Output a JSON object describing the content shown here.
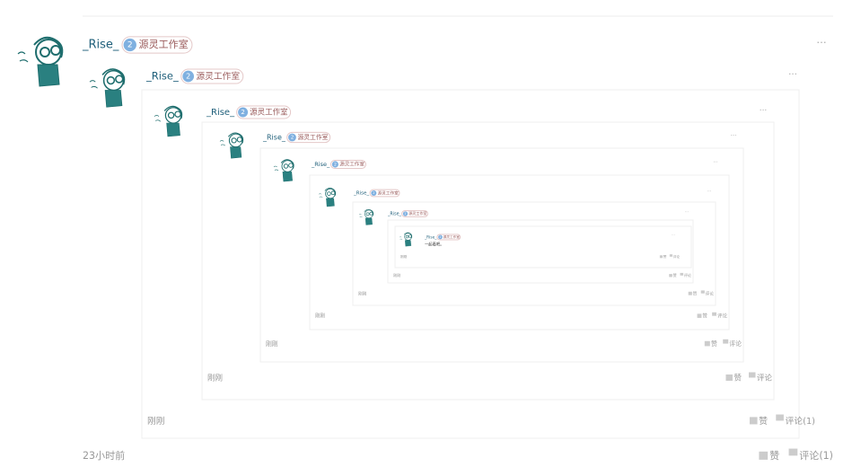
{
  "posts": [
    {
      "username": "_Rise_",
      "badge_level": "2",
      "badge": "源灵工作室",
      "time": "23小时前",
      "like": "赞",
      "comment": "评论(1)"
    },
    {
      "username": "_Rise_",
      "badge_level": "2",
      "badge": "源灵工作室",
      "time": "刚刚",
      "like": "赞",
      "comment": "评论(1)"
    },
    {
      "username": "_Rise_",
      "badge_level": "2",
      "badge": "源灵工作室",
      "time": "刚刚",
      "like": "赞",
      "comment": "评论"
    },
    {
      "username": "_Rise_",
      "badge_level": "2",
      "badge": "源灵工作室",
      "time": "刚刚",
      "like": "赞",
      "comment": "评论"
    },
    {
      "username": "_Rise_",
      "badge_level": "2",
      "badge": "源灵工作室",
      "time": "刚刚",
      "like": "赞",
      "comment": "评论"
    },
    {
      "username": "_Rise_",
      "badge_level": "2",
      "badge": "源灵工作室",
      "time": "刚刚",
      "like": "赞",
      "comment": "评论"
    },
    {
      "username": "_Rise_",
      "badge_level": "2",
      "badge": "源灵工作室",
      "time": "刚刚",
      "like": "赞",
      "comment": "评论"
    },
    {
      "username": "_Rise_",
      "badge_level": "2",
      "badge": "源灵工作室",
      "time": "刚刚",
      "like": "赞",
      "comment": "评论",
      "content": "一起看吧。"
    }
  ]
}
